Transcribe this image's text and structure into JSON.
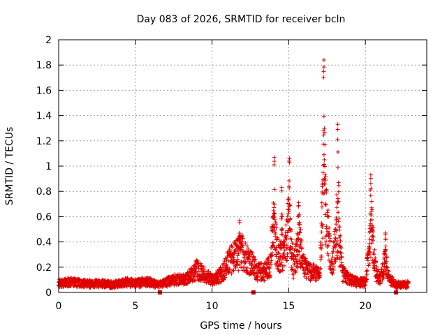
{
  "chart_data": {
    "type": "scatter",
    "title": "Day 083 of 2026, SRMTID for receiver bcln",
    "xlabel": "GPS time / hours",
    "ylabel": "SRMTID / TECUs",
    "xlim": [
      0,
      24
    ],
    "ylim": [
      0,
      2
    ],
    "xticks": [
      0,
      5,
      10,
      15,
      20
    ],
    "xtick_labels": [
      "0",
      "5",
      "10",
      "15",
      "20"
    ],
    "yticks": [
      0,
      0.2,
      0.4,
      0.6,
      0.8,
      1,
      1.2,
      1.4,
      1.6,
      1.8,
      2
    ],
    "ytick_labels": [
      "0",
      "0.2",
      "0.4",
      "0.6",
      "0.8",
      "1",
      "1.2",
      "1.4",
      "1.6",
      "1.8",
      "2"
    ],
    "grid": true,
    "marker": "+",
    "series_color": "#e00000",
    "envelope": [
      [
        0.0,
        0.07
      ],
      [
        0.5,
        0.08
      ],
      [
        1.0,
        0.08
      ],
      [
        1.5,
        0.07
      ],
      [
        2.0,
        0.07
      ],
      [
        2.5,
        0.07
      ],
      [
        3.0,
        0.07
      ],
      [
        3.5,
        0.06
      ],
      [
        4.0,
        0.07
      ],
      [
        4.5,
        0.08
      ],
      [
        5.0,
        0.07
      ],
      [
        5.5,
        0.08
      ],
      [
        6.0,
        0.08
      ],
      [
        6.5,
        0.06
      ],
      [
        7.0,
        0.08
      ],
      [
        7.5,
        0.1
      ],
      [
        8.0,
        0.1
      ],
      [
        8.5,
        0.12
      ],
      [
        9.0,
        0.18
      ],
      [
        9.5,
        0.14
      ],
      [
        10.0,
        0.1
      ],
      [
        10.5,
        0.13
      ],
      [
        11.0,
        0.22
      ],
      [
        11.5,
        0.3
      ],
      [
        12.0,
        0.32
      ],
      [
        12.5,
        0.24
      ],
      [
        13.0,
        0.16
      ],
      [
        13.5,
        0.17
      ],
      [
        13.8,
        0.22
      ],
      [
        14.0,
        0.5
      ],
      [
        14.3,
        0.3
      ],
      [
        14.6,
        0.28
      ],
      [
        14.8,
        0.35
      ],
      [
        15.0,
        0.55
      ],
      [
        15.3,
        0.2
      ],
      [
        15.7,
        0.4
      ],
      [
        16.0,
        0.2
      ],
      [
        16.5,
        0.16
      ],
      [
        17.0,
        0.14
      ],
      [
        17.3,
        0.9
      ],
      [
        17.5,
        0.55
      ],
      [
        17.8,
        0.18
      ],
      [
        18.2,
        0.5
      ],
      [
        18.5,
        0.15
      ],
      [
        19.0,
        0.1
      ],
      [
        19.5,
        0.08
      ],
      [
        20.0,
        0.08
      ],
      [
        20.4,
        0.5
      ],
      [
        20.7,
        0.15
      ],
      [
        21.0,
        0.1
      ],
      [
        21.3,
        0.25
      ],
      [
        21.6,
        0.1
      ],
      [
        22.0,
        0.06
      ],
      [
        22.5,
        0.06
      ],
      [
        22.8,
        0.06
      ]
    ],
    "peaks": [
      {
        "x": 11.8,
        "y": 0.57
      },
      {
        "x": 14.05,
        "y": 1.07
      },
      {
        "x": 14.55,
        "y": 0.83
      },
      {
        "x": 15.05,
        "y": 1.06
      },
      {
        "x": 15.65,
        "y": 0.71
      },
      {
        "x": 17.3,
        "y": 1.84
      },
      {
        "x": 18.2,
        "y": 1.33
      },
      {
        "x": 20.35,
        "y": 0.93
      },
      {
        "x": 21.3,
        "y": 0.47
      }
    ],
    "outliers_at_zero": [
      6.6,
      12.7,
      22.0
    ]
  }
}
